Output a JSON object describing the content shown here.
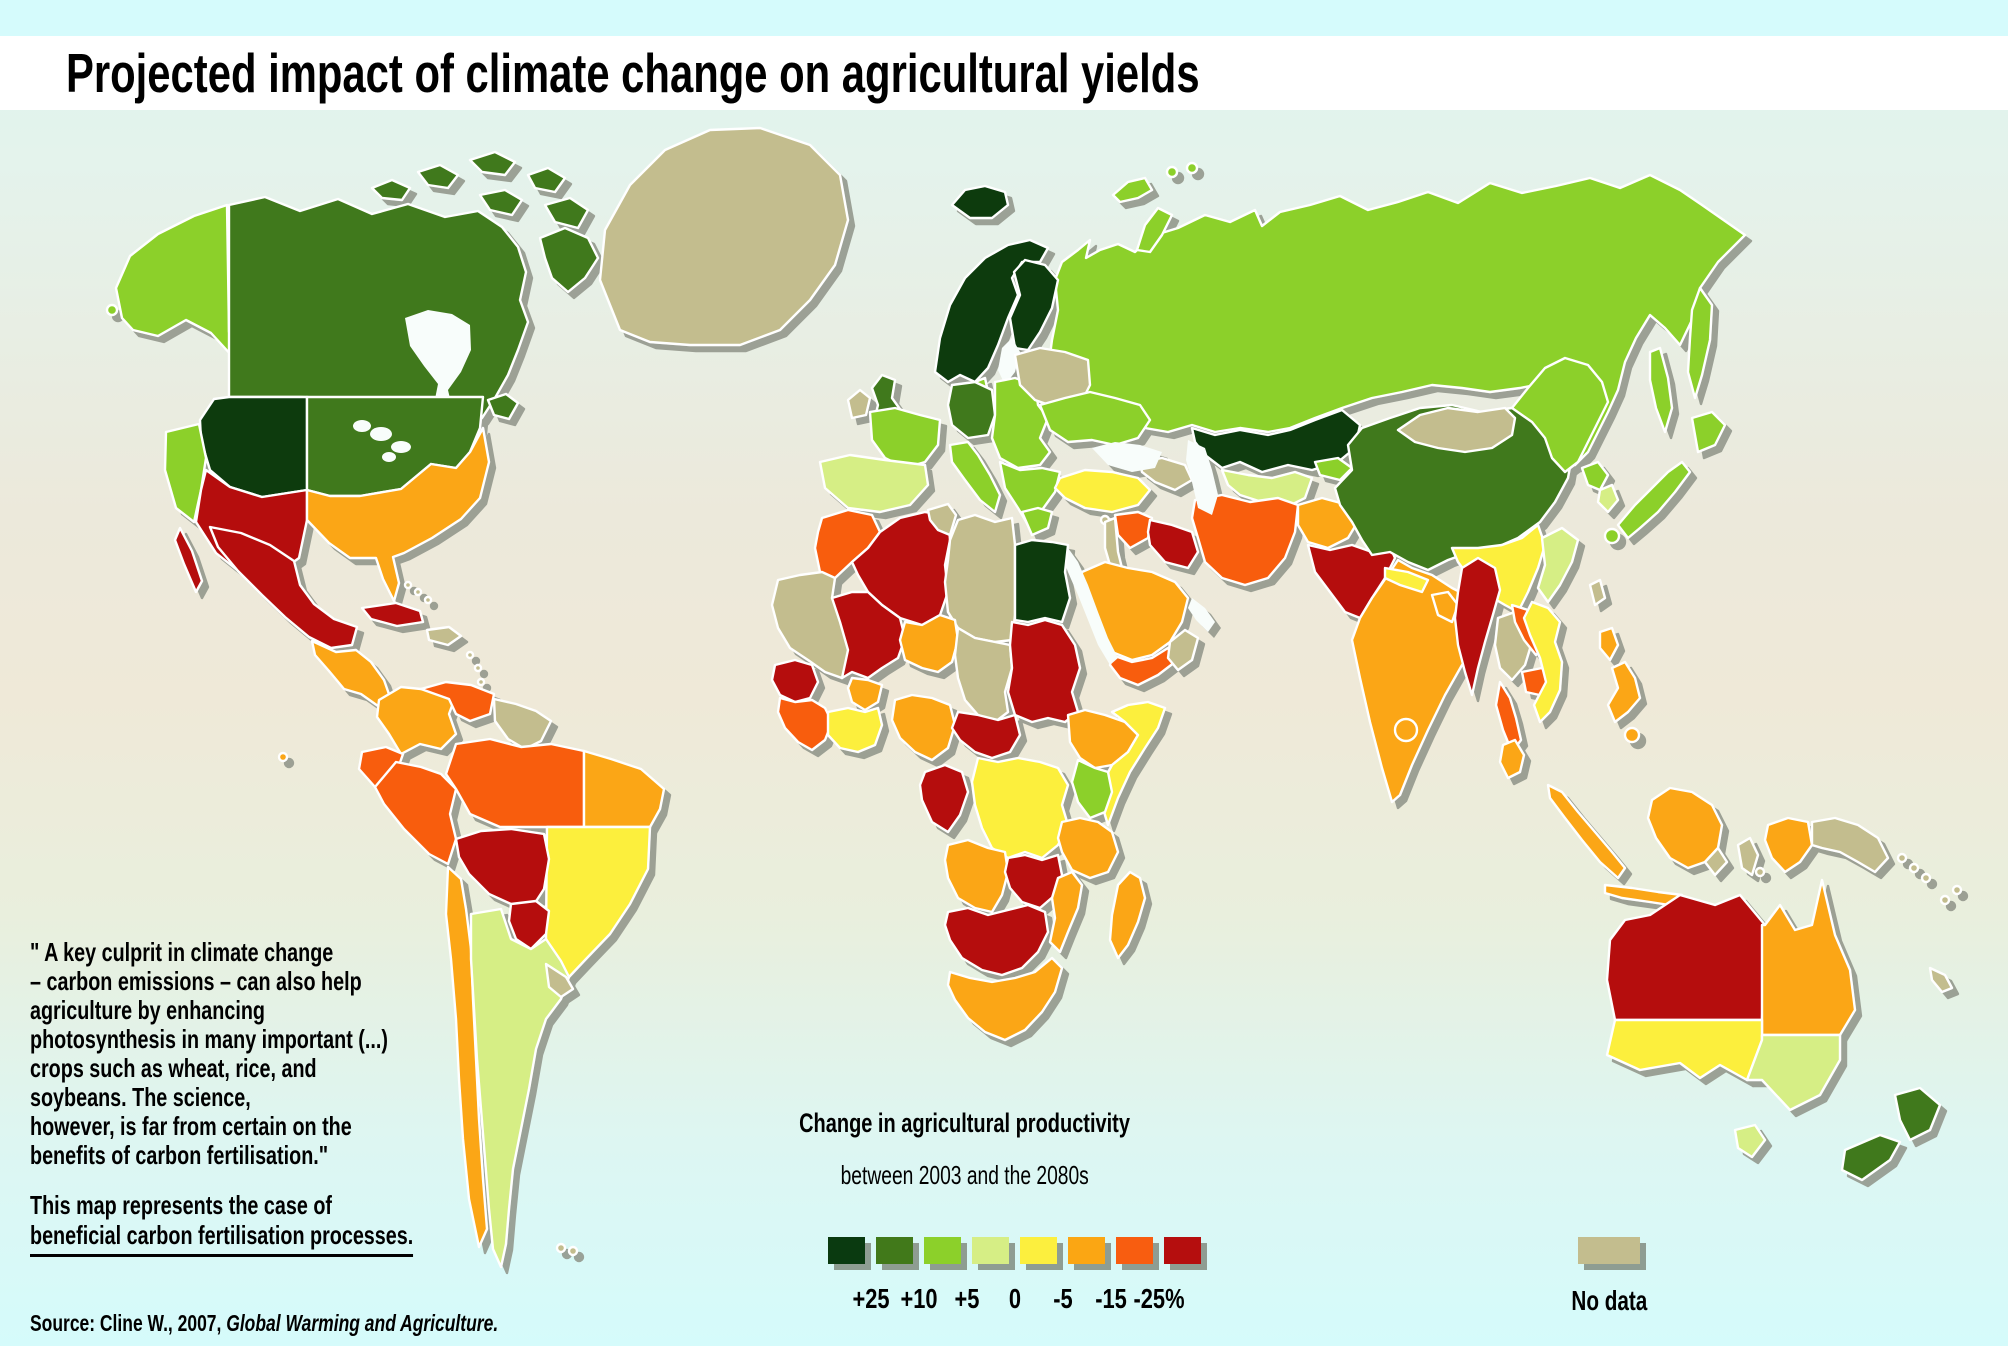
{
  "header": {
    "title": "Projected impact of climate change on agricultural yields"
  },
  "annotation": {
    "quote_lines": [
      "\" A key culprit in climate change",
      "– carbon emissions – can also help",
      "agriculture by enhancing",
      "photosynthesis in many important (...)",
      "crops such as wheat, rice, and",
      "soybeans. The science,",
      "however, is far from certain on the",
      "benefits of carbon fertilisation.\""
    ],
    "note_lines": [
      "This map represents the case of",
      "beneficial carbon fertilisation processes."
    ],
    "source_prefix": "Source: Cline W., 2007, ",
    "source_work": "Global Warming and Agriculture."
  },
  "legend": {
    "title": "Change in agricultural productivity",
    "subtitle": "between 2003 and the 2080s",
    "boundary_labels": [
      "+25",
      "+10",
      "+5",
      "0",
      "-5",
      "-15",
      "-25%"
    ],
    "classes": [
      {
        "id": "gain_25plus",
        "color": "#0a3a10"
      },
      {
        "id": "gain_10_25",
        "color": "#41791a"
      },
      {
        "id": "gain_5_10",
        "color": "#8cd02a"
      },
      {
        "id": "zero_5",
        "color": "#d6ee85"
      },
      {
        "id": "loss_0_5",
        "color": "#fcef3e"
      },
      {
        "id": "loss_5_15",
        "color": "#fba613"
      },
      {
        "id": "loss_15_25",
        "color": "#f85d10"
      },
      {
        "id": "loss_25plus",
        "color": "#b50e0e"
      }
    ],
    "no_data": {
      "label": "No data",
      "color": "#c3bd8e"
    }
  },
  "map_data": {
    "type": "choropleth",
    "measure": "Change in agricultural productivity between 2003 and the 2080s (%)",
    "regions": [
      {
        "id": "aleutians",
        "name": "Aleutian Islands",
        "category": "gain_5_10"
      },
      {
        "id": "alaska",
        "name": "Alaska",
        "category": "gain_5_10"
      },
      {
        "id": "canada",
        "name": "Canada",
        "category": "gain_10_25"
      },
      {
        "id": "canadian_arctic",
        "name": "Canadian Arctic Islands",
        "category": "gain_10_25"
      },
      {
        "id": "newfoundland",
        "name": "Newfoundland",
        "category": "gain_10_25"
      },
      {
        "id": "us_northwest",
        "name": "US Pacific Northwest",
        "category": "gain_25plus"
      },
      {
        "id": "us_california",
        "name": "US California coast",
        "category": "gain_5_10"
      },
      {
        "id": "us_central_east",
        "name": "US central and northeast",
        "category": "gain_10_25"
      },
      {
        "id": "us_southwest",
        "name": "US Southwest",
        "category": "loss_25plus"
      },
      {
        "id": "us_southeast",
        "name": "US Southeast",
        "category": "loss_5_15"
      },
      {
        "id": "hawaii",
        "name": "Hawaii",
        "category": "loss_5_15"
      },
      {
        "id": "mexico",
        "name": "Mexico",
        "category": "loss_25plus"
      },
      {
        "id": "central_america",
        "name": "Central America",
        "category": "loss_5_15"
      },
      {
        "id": "cuba",
        "name": "Cuba",
        "category": "loss_25plus"
      },
      {
        "id": "hispaniola",
        "name": "Hispaniola",
        "category": "no_data"
      },
      {
        "id": "bahamas",
        "name": "Bahamas",
        "category": "no_data"
      },
      {
        "id": "lesser_antilles",
        "name": "Lesser Antilles",
        "category": "no_data"
      },
      {
        "id": "colombia",
        "name": "Colombia",
        "category": "loss_5_15"
      },
      {
        "id": "venezuela",
        "name": "Venezuela",
        "category": "loss_15_25"
      },
      {
        "id": "guyanas",
        "name": "Guyanas",
        "category": "no_data"
      },
      {
        "id": "ecuador",
        "name": "Ecuador",
        "category": "loss_15_25"
      },
      {
        "id": "peru",
        "name": "Peru",
        "category": "loss_15_25"
      },
      {
        "id": "brazil_west",
        "name": "Brazil (Amazon west)",
        "category": "loss_15_25"
      },
      {
        "id": "brazil_east",
        "name": "Brazil (northeast)",
        "category": "loss_5_15"
      },
      {
        "id": "brazil_south",
        "name": "Brazil (south)",
        "category": "loss_0_5"
      },
      {
        "id": "bolivia",
        "name": "Bolivia",
        "category": "loss_25plus"
      },
      {
        "id": "paraguay",
        "name": "Paraguay",
        "category": "loss_25plus"
      },
      {
        "id": "chile",
        "name": "Chile (north)",
        "category": "loss_5_15"
      },
      {
        "id": "argentina",
        "name": "Argentina",
        "category": "zero_5"
      },
      {
        "id": "uruguay",
        "name": "Uruguay",
        "category": "no_data"
      },
      {
        "id": "falklands",
        "name": "Falkland Islands",
        "category": "no_data"
      },
      {
        "id": "greenland",
        "name": "Greenland",
        "category": "no_data"
      },
      {
        "id": "iceland",
        "name": "Iceland",
        "category": "gain_25plus"
      },
      {
        "id": "svalbard",
        "name": "Svalbard",
        "category": "gain_5_10"
      },
      {
        "id": "uk",
        "name": "United Kingdom",
        "category": "gain_10_25"
      },
      {
        "id": "ireland",
        "name": "Ireland",
        "category": "no_data"
      },
      {
        "id": "scandinavia",
        "name": "Norway and Sweden",
        "category": "gain_25plus"
      },
      {
        "id": "finland",
        "name": "Finland",
        "category": "gain_25plus"
      },
      {
        "id": "denmark",
        "name": "Denmark",
        "category": "gain_5_10"
      },
      {
        "id": "france",
        "name": "France",
        "category": "gain_5_10"
      },
      {
        "id": "iberia",
        "name": "Spain and Portugal",
        "category": "zero_5"
      },
      {
        "id": "germany",
        "name": "Germany",
        "category": "gain_10_25"
      },
      {
        "id": "central_europe",
        "name": "Central Europe",
        "category": "gain_5_10"
      },
      {
        "id": "balkans",
        "name": "Balkans",
        "category": "gain_5_10"
      },
      {
        "id": "greece",
        "name": "Greece",
        "category": "gain_5_10"
      },
      {
        "id": "italy",
        "name": "Italy",
        "category": "gain_5_10"
      },
      {
        "id": "baltics_belarus",
        "name": "Baltic states and Belarus",
        "category": "no_data"
      },
      {
        "id": "ukraine",
        "name": "Ukraine",
        "category": "gain_5_10"
      },
      {
        "id": "russia",
        "name": "Russia",
        "category": "gain_5_10"
      },
      {
        "id": "novaya_zemlya",
        "name": "Novaya Zemlya",
        "category": "gain_5_10"
      },
      {
        "id": "kazakhstan",
        "name": "Kazakhstan",
        "category": "gain_25plus"
      },
      {
        "id": "central_asia",
        "name": "Turkmenistan and Uzbekistan",
        "category": "zero_5"
      },
      {
        "id": "kyrgyzstan",
        "name": "Kyrgyzstan",
        "category": "gain_5_10"
      },
      {
        "id": "caucasus",
        "name": "Caucasus",
        "category": "no_data"
      },
      {
        "id": "turkey",
        "name": "Turkey",
        "category": "loss_0_5"
      },
      {
        "id": "cyprus",
        "name": "Cyprus",
        "category": "no_data"
      },
      {
        "id": "syria",
        "name": "Syria",
        "category": "loss_15_25"
      },
      {
        "id": "levant",
        "name": "Levant coast",
        "category": "no_data"
      },
      {
        "id": "iraq",
        "name": "Iraq",
        "category": "loss_25plus"
      },
      {
        "id": "iran",
        "name": "Iran",
        "category": "loss_15_25"
      },
      {
        "id": "afghanistan",
        "name": "Afghanistan",
        "category": "loss_5_15"
      },
      {
        "id": "pakistan",
        "name": "Pakistan",
        "category": "loss_25plus"
      },
      {
        "id": "saudi_arabia",
        "name": "Saudi Arabia",
        "category": "loss_5_15"
      },
      {
        "id": "yemen",
        "name": "Yemen",
        "category": "loss_15_25"
      },
      {
        "id": "oman_uae",
        "name": "Oman and UAE",
        "category": "no_data"
      },
      {
        "id": "india",
        "name": "India",
        "category": "loss_5_15"
      },
      {
        "id": "nepal",
        "name": "Nepal",
        "category": "loss_0_5"
      },
      {
        "id": "bangladesh",
        "name": "Bangladesh",
        "category": "loss_5_15"
      },
      {
        "id": "sri_lanka",
        "name": "Sri Lanka",
        "category": "loss_5_15"
      },
      {
        "id": "myanmar",
        "name": "Myanmar",
        "category": "loss_25plus"
      },
      {
        "id": "thailand",
        "name": "Thailand",
        "category": "no_data"
      },
      {
        "id": "thai_malay_peninsula",
        "name": "Malay peninsula",
        "category": "loss_15_25"
      },
      {
        "id": "malaysia",
        "name": "Malaysia",
        "category": "loss_5_15"
      },
      {
        "id": "laos",
        "name": "Laos",
        "category": "loss_15_25"
      },
      {
        "id": "cambodia",
        "name": "Cambodia",
        "category": "loss_15_25"
      },
      {
        "id": "vietnam",
        "name": "Vietnam",
        "category": "loss_0_5"
      },
      {
        "id": "china",
        "name": "China (main)",
        "category": "gain_10_25"
      },
      {
        "id": "china_northeast",
        "name": "China (northeast)",
        "category": "gain_5_10"
      },
      {
        "id": "china_southeast",
        "name": "China (southeast)",
        "category": "loss_0_5"
      },
      {
        "id": "china_se_coast",
        "name": "China (southeast coast)",
        "category": "zero_5"
      },
      {
        "id": "mongolia",
        "name": "Mongolia",
        "category": "no_data"
      },
      {
        "id": "north_korea",
        "name": "North Korea",
        "category": "gain_5_10"
      },
      {
        "id": "south_korea",
        "name": "South Korea",
        "category": "zero_5"
      },
      {
        "id": "japan",
        "name": "Japan",
        "category": "gain_5_10"
      },
      {
        "id": "sakhalin",
        "name": "Sakhalin",
        "category": "gain_5_10"
      },
      {
        "id": "taiwan",
        "name": "Taiwan",
        "category": "no_data"
      },
      {
        "id": "philippines",
        "name": "Philippines",
        "category": "loss_5_15"
      },
      {
        "id": "sumatra",
        "name": "Sumatra",
        "category": "loss_5_15"
      },
      {
        "id": "java",
        "name": "Java",
        "category": "loss_5_15"
      },
      {
        "id": "borneo",
        "name": "Borneo",
        "category": "loss_5_15"
      },
      {
        "id": "borneo_se",
        "name": "Borneo southeast",
        "category": "no_data"
      },
      {
        "id": "sulawesi",
        "name": "Sulawesi",
        "category": "no_data"
      },
      {
        "id": "lesser_sunda",
        "name": "Lesser Sunda Islands",
        "category": "no_data"
      },
      {
        "id": "new_guinea_west",
        "name": "New Guinea (west)",
        "category": "loss_5_15"
      },
      {
        "id": "papua_new_guinea",
        "name": "Papua New Guinea",
        "category": "no_data"
      },
      {
        "id": "solomons",
        "name": "Solomon Islands",
        "category": "no_data"
      },
      {
        "id": "pacific_islands",
        "name": "Pacific islands",
        "category": "no_data"
      },
      {
        "id": "morocco",
        "name": "Morocco",
        "category": "loss_15_25"
      },
      {
        "id": "western_sahara_mauritania",
        "name": "W. Sahara and Mauritania",
        "category": "no_data"
      },
      {
        "id": "algeria",
        "name": "Algeria",
        "category": "loss_25plus"
      },
      {
        "id": "tunisia",
        "name": "Tunisia",
        "category": "no_data"
      },
      {
        "id": "libya",
        "name": "Libya",
        "category": "no_data"
      },
      {
        "id": "egypt",
        "name": "Egypt",
        "category": "gain_25plus"
      },
      {
        "id": "mali",
        "name": "Mali",
        "category": "loss_25plus"
      },
      {
        "id": "niger",
        "name": "Niger",
        "category": "loss_5_15"
      },
      {
        "id": "chad",
        "name": "Chad",
        "category": "no_data"
      },
      {
        "id": "sudan",
        "name": "Sudan",
        "category": "loss_25plus"
      },
      {
        "id": "senegal",
        "name": "Senegal",
        "category": "loss_25plus"
      },
      {
        "id": "guinea",
        "name": "Guinea",
        "category": "loss_15_25"
      },
      {
        "id": "burkina_faso",
        "name": "Burkina Faso",
        "category": "loss_5_15"
      },
      {
        "id": "ghana_ivory_coast",
        "name": "Ghana and Ivory Coast",
        "category": "loss_0_5"
      },
      {
        "id": "nigeria",
        "name": "Nigeria",
        "category": "loss_5_15"
      },
      {
        "id": "cameroon_car",
        "name": "Cameroon and C.A.R.",
        "category": "loss_25plus"
      },
      {
        "id": "ethiopia",
        "name": "Ethiopia",
        "category": "loss_5_15"
      },
      {
        "id": "somalia",
        "name": "Somalia",
        "category": "loss_0_5"
      },
      {
        "id": "kenya",
        "name": "Kenya",
        "category": "gain_5_10"
      },
      {
        "id": "drc",
        "name": "D.R. Congo",
        "category": "loss_0_5"
      },
      {
        "id": "gabon_congo",
        "name": "Gabon and Congo",
        "category": "loss_25plus"
      },
      {
        "id": "tanzania",
        "name": "Tanzania",
        "category": "loss_5_15"
      },
      {
        "id": "angola",
        "name": "Angola",
        "category": "loss_5_15"
      },
      {
        "id": "zambia",
        "name": "Zambia",
        "category": "loss_25plus"
      },
      {
        "id": "mozambique",
        "name": "Mozambique",
        "category": "loss_5_15"
      },
      {
        "id": "namibia_botswana_zimbabwe",
        "name": "Namibia, Botswana, Zimbabwe",
        "category": "loss_25plus"
      },
      {
        "id": "south_africa",
        "name": "South Africa",
        "category": "loss_5_15"
      },
      {
        "id": "madagascar",
        "name": "Madagascar",
        "category": "loss_5_15"
      },
      {
        "id": "australia_northwest",
        "name": "Australia (northwest)",
        "category": "loss_25plus"
      },
      {
        "id": "australia_northeast",
        "name": "Australia (northeast)",
        "category": "loss_5_15"
      },
      {
        "id": "australia_southwest",
        "name": "Australia (south)",
        "category": "loss_0_5"
      },
      {
        "id": "australia_southeast",
        "name": "Australia (southeast)",
        "category": "zero_5"
      },
      {
        "id": "tasmania",
        "name": "Tasmania",
        "category": "zero_5"
      },
      {
        "id": "new_zealand",
        "name": "New Zealand",
        "category": "gain_10_25"
      }
    ]
  }
}
